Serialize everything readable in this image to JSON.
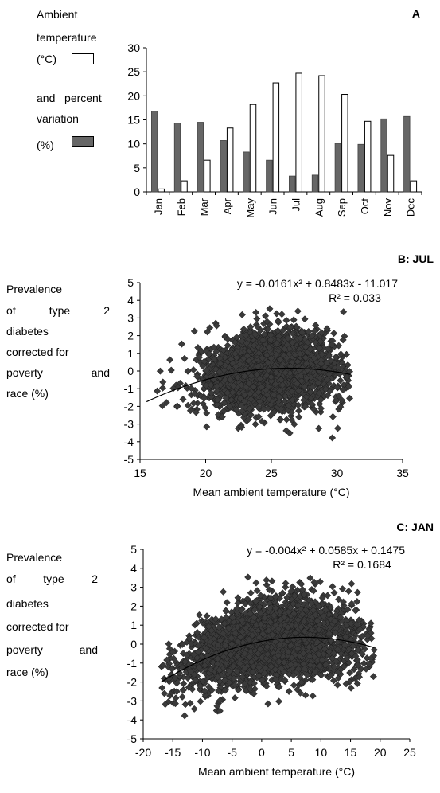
{
  "chart_data": [
    {
      "panel": "A",
      "type": "bar",
      "categories": [
        "Jan",
        "Feb",
        "Mar",
        "Apr",
        "May",
        "Jun",
        "Jul",
        "Aug",
        "Sep",
        "Oct",
        "Nov",
        "Dec"
      ],
      "series": [
        {
          "name": "Ambient temperature (°C)",
          "color": "#ffffff",
          "values": [
            0.6,
            2.3,
            6.6,
            13.3,
            18.2,
            22.7,
            24.7,
            24.2,
            20.3,
            14.7,
            7.6,
            2.3
          ]
        },
        {
          "name": "and percent variation (%)",
          "color": "#666666",
          "values": [
            16.8,
            14.3,
            14.5,
            10.7,
            8.3,
            6.6,
            3.3,
            3.5,
            10.1,
            9.9,
            15.2,
            15.7
          ]
        }
      ],
      "ylim": [
        0,
        30
      ],
      "yticks": [
        0,
        5,
        10,
        15,
        20,
        25,
        30
      ],
      "legend": {
        "temperature_lines": [
          "Ambient",
          "temperature",
          "(°C)"
        ],
        "variation_lines": [
          "and   percent",
          "variation",
          "(%)"
        ]
      },
      "grid": false
    },
    {
      "panel": "B: JUL",
      "type": "scatter",
      "xlabel": "Mean ambient temperature (°C)",
      "ylabel_lines": [
        "Prevalence",
        "of   type   2",
        "diabetes",
        "corrected for",
        "poverty   and",
        "race (%)"
      ],
      "xlim": [
        15,
        35
      ],
      "ylim": [
        -5,
        5
      ],
      "xticks": [
        15,
        20,
        25,
        30,
        35
      ],
      "yticks": [
        -5,
        -4,
        -3,
        -2,
        -1,
        0,
        1,
        2,
        3,
        4,
        5
      ],
      "trendline": {
        "type": "polynomial",
        "a": -0.0161,
        "b": 0.8483,
        "c": -11.017,
        "x_range": [
          15.5,
          31
        ]
      },
      "equation": "y = -0.0161x² + 0.8483x - 11.017",
      "r_squared": "R² = 0.033",
      "scatter_description": {
        "n_points": 3000,
        "x_center": 25.0,
        "x_sd": 2.5,
        "x_range": [
          15.5,
          31
        ],
        "y_sd": 1.05,
        "y_range": [
          -3.9,
          4.0
        ]
      },
      "marker": "diamond",
      "marker_color": "#3a3a3a",
      "grid": false
    },
    {
      "panel": "C: JAN",
      "type": "scatter",
      "xlabel": "Mean ambient temperature (°C)",
      "ylabel_lines": [
        "Prevalence",
        "of   type   2",
        "diabetes",
        "corrected for",
        "poverty    and",
        "race (%)"
      ],
      "xlim": [
        -20,
        25
      ],
      "ylim": [
        -5,
        5
      ],
      "xticks": [
        -20,
        -15,
        -10,
        -5,
        0,
        5,
        10,
        15,
        20,
        25
      ],
      "yticks": [
        -5,
        -4,
        -3,
        -2,
        -1,
        0,
        1,
        2,
        3,
        4,
        5
      ],
      "trendline": {
        "type": "polynomial",
        "a": -0.004,
        "b": 0.0585,
        "c": 0.1475,
        "x_range": [
          -17,
          19
        ]
      },
      "equation": "y = -0.004x² + 0.0585x + 0.1475",
      "r_squared": "R² = 0.1684",
      "scatter_description": {
        "n_points": 3000,
        "x_center": 2.0,
        "x_sd": 7.5,
        "x_range": [
          -17,
          19
        ],
        "y_sd": 1.05,
        "y_range": [
          -3.9,
          4.0
        ]
      },
      "marker": "diamond",
      "marker_color": "#3a3a3a",
      "grid": false
    }
  ]
}
